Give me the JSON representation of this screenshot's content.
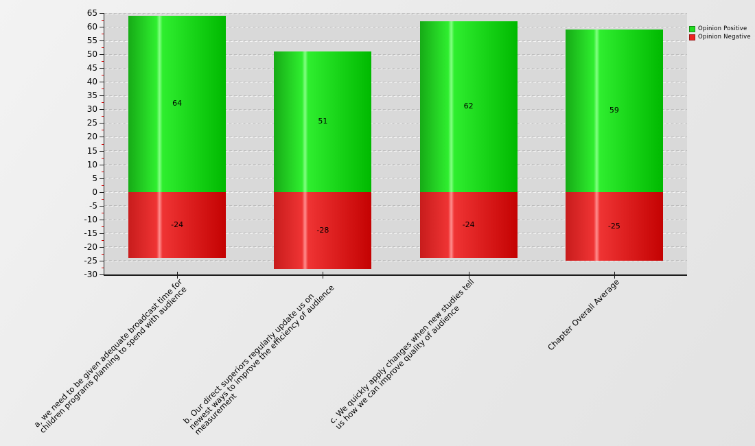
{
  "chart_data": {
    "type": "bar",
    "subtype": "diverging-stacked",
    "title": "",
    "xlabel": "",
    "ylabel": "",
    "grid": "horizontal-dashed",
    "legend_position": "top-right",
    "categories": [
      {
        "lines": [
          "a, we need to be given adequate broadcast time for",
          "children programs planning to spend with audience"
        ]
      },
      {
        "lines": [
          "b. Our direct superiors regularly update us on",
          "newest ways to improve the efficiency of audience",
          "measurement"
        ]
      },
      {
        "lines": [
          "c. We quickly apply changes when new studies tell",
          "us how we can improve quality of audience"
        ]
      },
      {
        "lines": [
          "Chapter Overall Average"
        ]
      }
    ],
    "series": [
      {
        "name": "Opinion Positive",
        "values": [
          64,
          51,
          62,
          59
        ],
        "value_labels": [
          "64",
          "51",
          "62",
          "59"
        ],
        "swatch_color": "#22dd22",
        "gradient": {
          "left": "#16ab16",
          "bright": "#2fee2f",
          "highlight": "#84ff84",
          "right": "#00b900"
        }
      },
      {
        "name": "Opinion Negative",
        "values": [
          -24,
          -28,
          -24,
          -25
        ],
        "value_labels": [
          "-24",
          "-28",
          "-24",
          "-25"
        ],
        "swatch_color": "#ee2222",
        "gradient": {
          "left": "#c81c1c",
          "bright": "#ef3434",
          "highlight": "#ff8f8f",
          "right": "#c40202"
        }
      }
    ],
    "y_axis": {
      "min": -30,
      "max": 65,
      "major_step": 5,
      "minor_step": 2.5,
      "tick_labels": [
        65,
        60,
        55,
        50,
        45,
        40,
        35,
        30,
        25,
        20,
        15,
        10,
        5,
        0,
        -5,
        -10,
        -15,
        -20,
        -25,
        -30
      ],
      "minor_tick_color": "#dd0000"
    },
    "colors": {
      "plot_background": "#d9d9d9",
      "axis": "#1a1a1a",
      "gridline": "#bdbdbd",
      "gridline_highlight": "#f4f4f4",
      "text": "#000000"
    }
  }
}
